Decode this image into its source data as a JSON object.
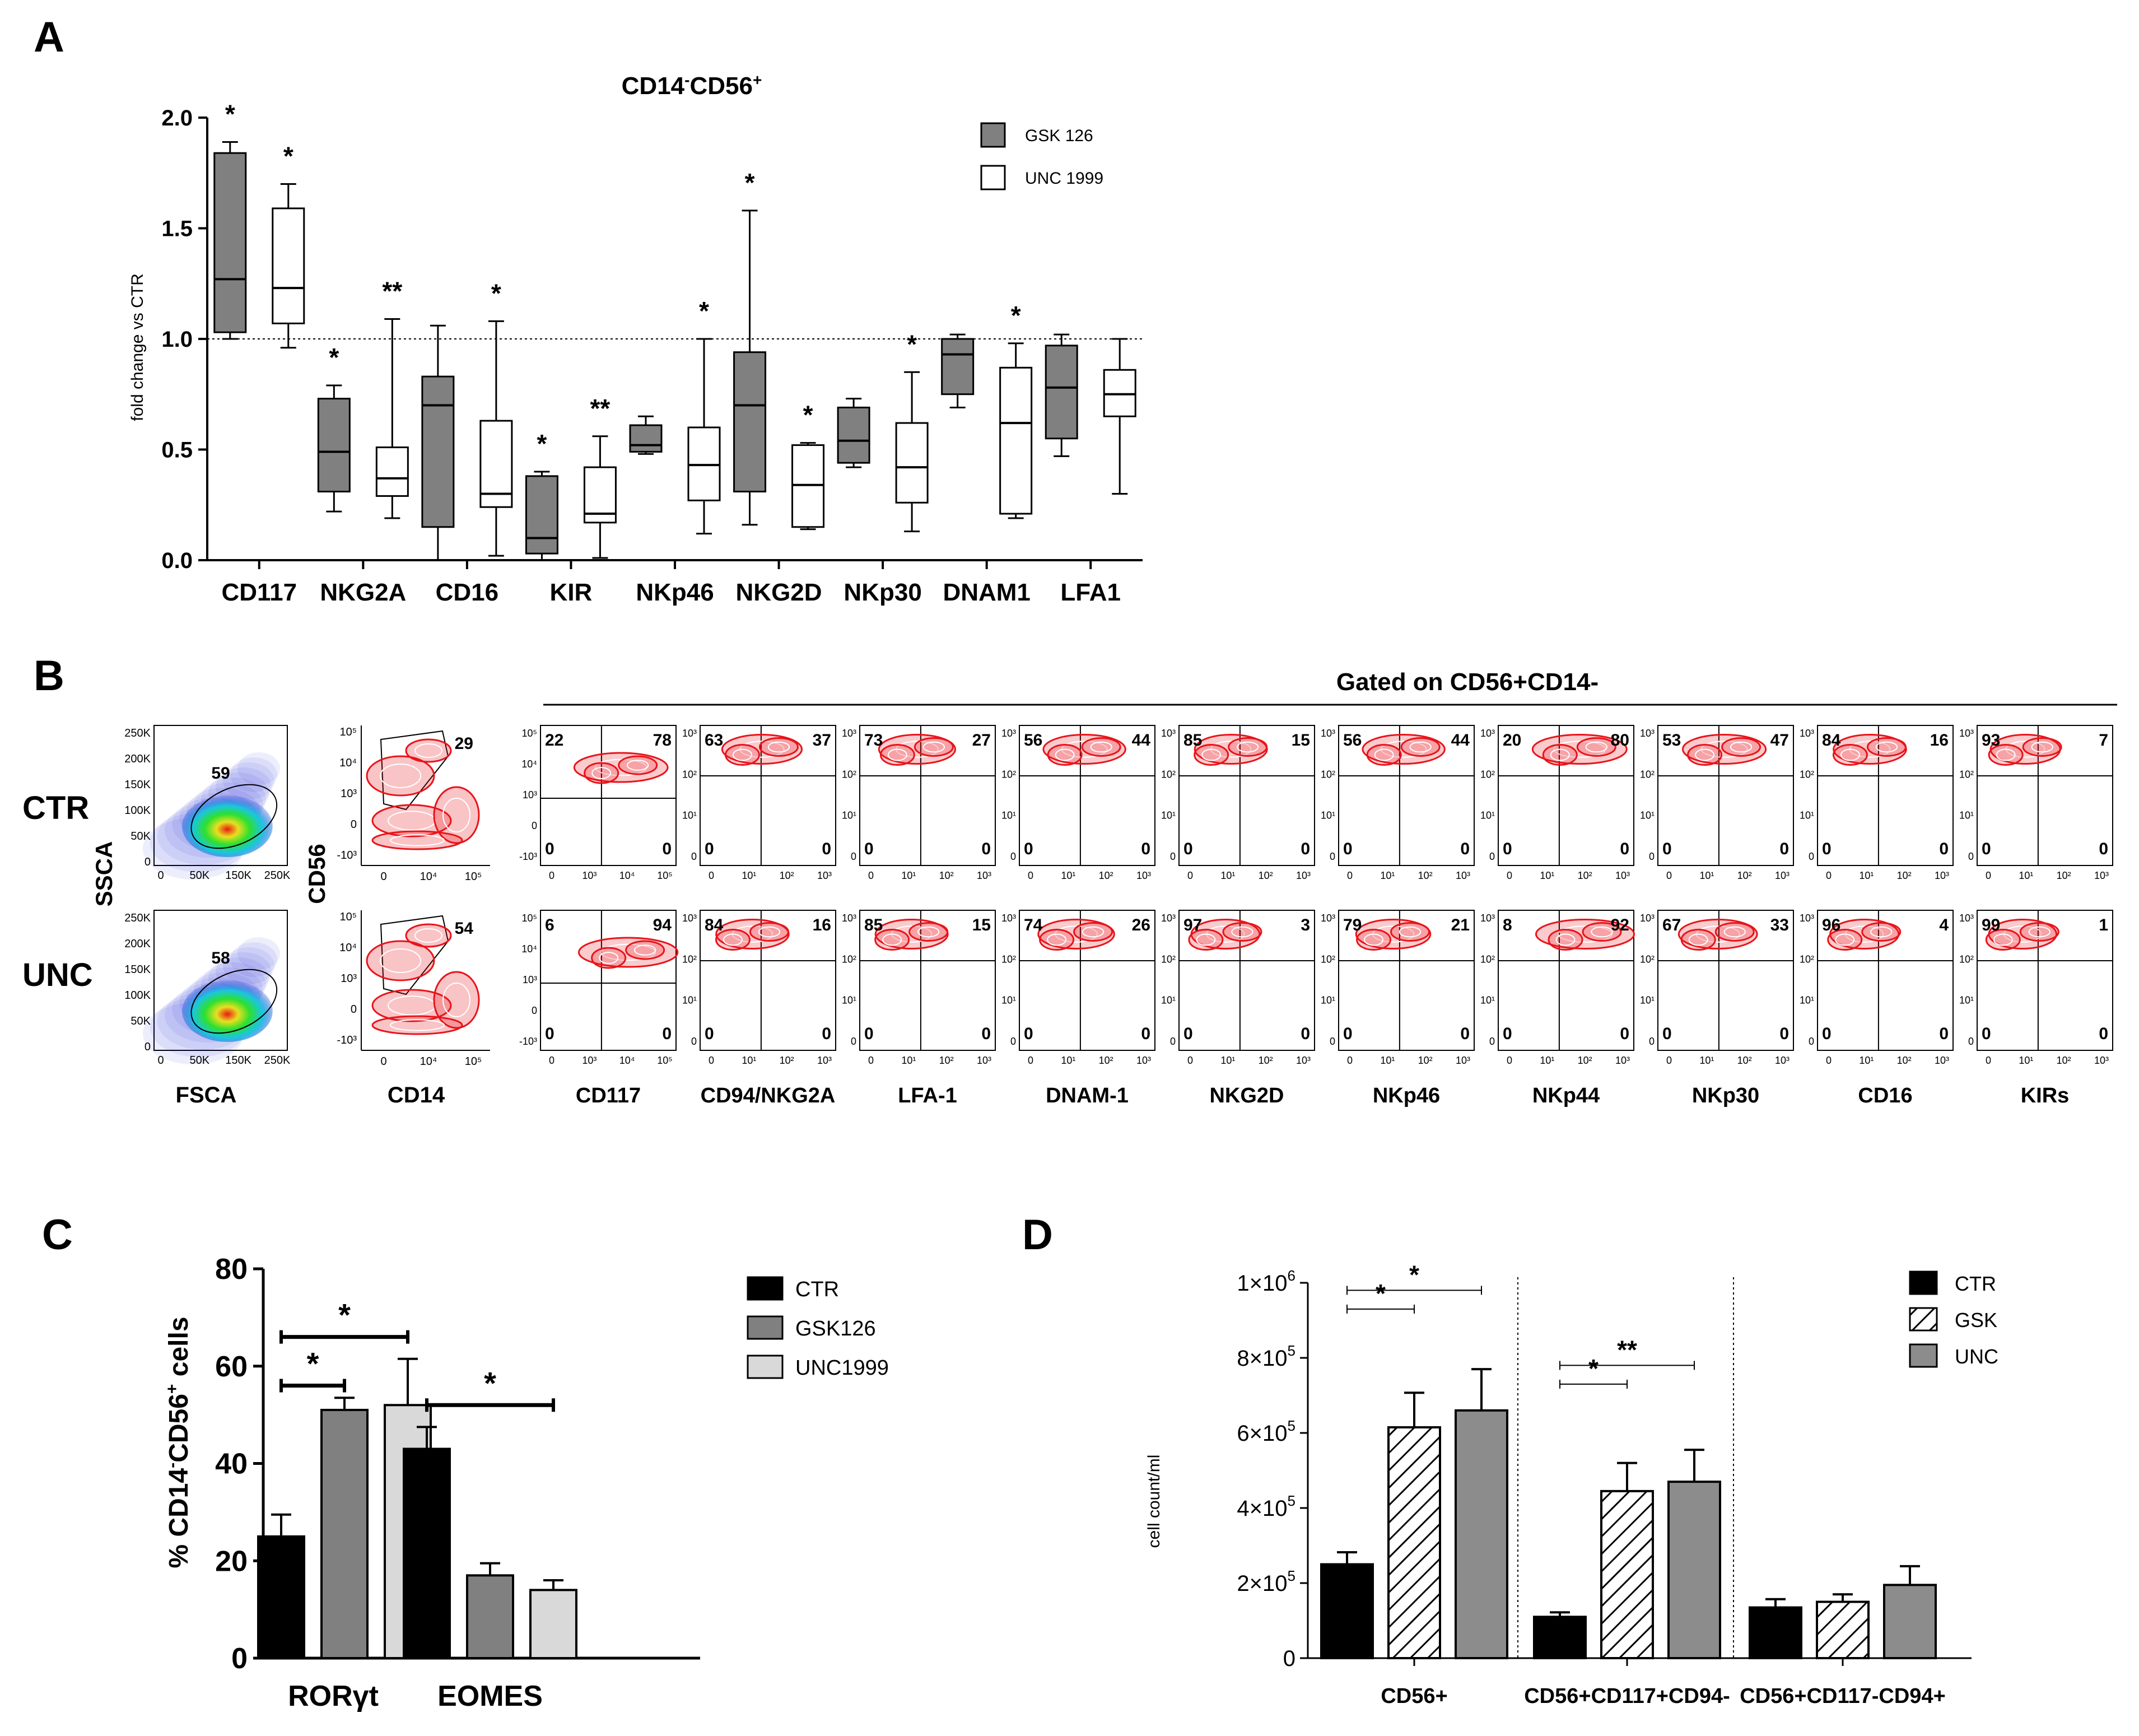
{
  "panel_labels": {
    "a": "A",
    "b": "B",
    "c": "C",
    "d": "D"
  },
  "colors": {
    "gsk": "#808080",
    "unc": "#ffffff",
    "ctr": "#000000",
    "unc_c": "#d9d9d9",
    "unc_d": "#8c8c8c",
    "flow_red": "#e8141a",
    "flow_density": [
      "#1a2bd8",
      "#19c6e0",
      "#2ee02e",
      "#e8e020",
      "#e81a14"
    ]
  },
  "chart_data": [
    {
      "type": "box",
      "title": "CD14-CD56+",
      "title_parts": {
        "a": "CD14",
        "b": "-",
        "c": "CD56",
        "d": "+"
      },
      "ylabel": "fold change vs CTR",
      "ylim": [
        0,
        2.0
      ],
      "yticks": [
        "0.0",
        "0.5",
        "1.0",
        "1.5",
        "2.0"
      ],
      "reference_line": 1.0,
      "categories": [
        "CD117",
        "NKG2A",
        "CD16",
        "KIR",
        "NKp46",
        "NKG2D",
        "NKp30",
        "DNAM1",
        "LFA1"
      ],
      "legend": [
        "GSK 126",
        "UNC 1999"
      ],
      "series": [
        {
          "name": "GSK 126",
          "boxes": [
            {
              "min": 1.0,
              "q1": 1.03,
              "med": 1.27,
              "q3": 1.84,
              "max": 1.89
            },
            {
              "min": 0.22,
              "q1": 0.31,
              "med": 0.49,
              "q3": 0.73,
              "max": 0.79
            },
            {
              "min": 0.0,
              "q1": 0.15,
              "med": 0.7,
              "q3": 0.83,
              "max": 1.06
            },
            {
              "min": 0.0,
              "q1": 0.03,
              "med": 0.1,
              "q3": 0.38,
              "max": 0.4
            },
            {
              "min": 0.48,
              "q1": 0.49,
              "med": 0.52,
              "q3": 0.61,
              "max": 0.65
            },
            {
              "min": 0.16,
              "q1": 0.31,
              "med": 0.7,
              "q3": 0.94,
              "max": 1.58
            },
            {
              "min": 0.42,
              "q1": 0.44,
              "med": 0.54,
              "q3": 0.69,
              "max": 0.73
            },
            {
              "min": 0.69,
              "q1": 0.75,
              "med": 0.93,
              "q3": 1.0,
              "max": 1.02
            },
            {
              "min": 0.47,
              "q1": 0.55,
              "med": 0.78,
              "q3": 0.97,
              "max": 1.02
            }
          ]
        },
        {
          "name": "UNC 1999",
          "boxes": [
            {
              "min": 0.96,
              "q1": 1.07,
              "med": 1.23,
              "q3": 1.59,
              "max": 1.7
            },
            {
              "min": 0.19,
              "q1": 0.29,
              "med": 0.37,
              "q3": 0.51,
              "max": 1.09
            },
            {
              "min": 0.02,
              "q1": 0.24,
              "med": 0.3,
              "q3": 0.63,
              "max": 1.08
            },
            {
              "min": 0.01,
              "q1": 0.17,
              "med": 0.21,
              "q3": 0.42,
              "max": 0.56
            },
            {
              "min": 0.12,
              "q1": 0.27,
              "med": 0.43,
              "q3": 0.6,
              "max": 1.0
            },
            {
              "min": 0.14,
              "q1": 0.15,
              "med": 0.34,
              "q3": 0.52,
              "max": 0.53
            },
            {
              "min": 0.13,
              "q1": 0.26,
              "med": 0.42,
              "q3": 0.62,
              "max": 0.85
            },
            {
              "min": 0.19,
              "q1": 0.21,
              "med": 0.62,
              "q3": 0.87,
              "max": 0.98
            },
            {
              "min": 0.3,
              "q1": 0.65,
              "med": 0.75,
              "q3": 0.86,
              "max": 1.0
            }
          ]
        }
      ],
      "annotations": [
        {
          "category": "CD117",
          "series": 0,
          "text": "*"
        },
        {
          "category": "CD117",
          "series": 1,
          "text": "*"
        },
        {
          "category": "NKG2A",
          "series": 0,
          "text": "*"
        },
        {
          "category": "NKG2A",
          "series": 1,
          "text": "**"
        },
        {
          "category": "CD16",
          "series": 1,
          "text": "*"
        },
        {
          "category": "KIR",
          "series": 0,
          "text": "*"
        },
        {
          "category": "KIR",
          "series": 1,
          "text": "**"
        },
        {
          "category": "NKp46",
          "series": 1,
          "text": "*"
        },
        {
          "category": "NKG2D",
          "series": 0,
          "text": "*"
        },
        {
          "category": "NKG2D",
          "series": 1,
          "text": "*"
        },
        {
          "category": "NKp30",
          "series": 1,
          "text": "*"
        },
        {
          "category": "DNAM1",
          "series": 1,
          "text": "*"
        }
      ]
    },
    {
      "type": "flow_cytometry",
      "header": "Gated on CD56+CD14-",
      "rows": [
        "CTR",
        "UNC"
      ],
      "scatter": {
        "xlabel": "FSCA",
        "ylabel": "SSCA",
        "yticks": [
          "250K",
          "200K",
          "150K",
          "100K",
          "50K",
          "0"
        ],
        "xticks": [
          "0",
          "50K",
          "150K",
          "250K"
        ],
        "values": [
          "59",
          "58"
        ]
      },
      "gate": {
        "xlabel": "CD14",
        "ylabel": "CD56",
        "values": [
          "29",
          "54"
        ]
      },
      "gate_axis": {
        "y": [
          "10⁵",
          "10⁴",
          "10³",
          "0",
          "-10³"
        ],
        "x": [
          "0",
          "10⁴",
          "10⁵"
        ]
      },
      "marker_axis": {
        "y": [
          "10³",
          "10²",
          "10¹",
          "0"
        ],
        "x": [
          "0",
          "10¹",
          "10²",
          "10³"
        ]
      },
      "cd117_axis": {
        "y": [
          "10⁵",
          "10⁴",
          "10³",
          "0",
          "-10³"
        ],
        "x": [
          "0",
          "10³",
          "10⁴",
          "10⁵"
        ]
      },
      "markers": [
        {
          "name": "CD117",
          "ctr": [
            "22",
            "78",
            "0",
            "0"
          ],
          "unc": [
            "6",
            "94",
            "0",
            "0"
          ]
        },
        {
          "name": "CD94/NKG2A",
          "ctr": [
            "63",
            "37",
            "0",
            "0"
          ],
          "unc": [
            "84",
            "16",
            "0",
            "0"
          ]
        },
        {
          "name": "LFA-1",
          "ctr": [
            "73",
            "27",
            "0",
            "0"
          ],
          "unc": [
            "85",
            "15",
            "0",
            "0"
          ]
        },
        {
          "name": "DNAM-1",
          "ctr": [
            "56",
            "44",
            "0",
            "0"
          ],
          "unc": [
            "74",
            "26",
            "0",
            "0"
          ]
        },
        {
          "name": "NKG2D",
          "ctr": [
            "85",
            "15",
            "0",
            "0"
          ],
          "unc": [
            "97",
            "3",
            "0",
            "0"
          ]
        },
        {
          "name": "NKp46",
          "ctr": [
            "56",
            "44",
            "0",
            "0"
          ],
          "unc": [
            "79",
            "21",
            "0",
            "0"
          ]
        },
        {
          "name": "NKp44",
          "ctr": [
            "20",
            "80",
            "0",
            "0"
          ],
          "unc": [
            "8",
            "92",
            "0",
            "0"
          ]
        },
        {
          "name": "NKp30",
          "ctr": [
            "53",
            "47",
            "0",
            "0"
          ],
          "unc": [
            "67",
            "33",
            "0",
            "0"
          ]
        },
        {
          "name": "CD16",
          "ctr": [
            "84",
            "16",
            "0",
            "0"
          ],
          "unc": [
            "96",
            "4",
            "0",
            "0"
          ]
        },
        {
          "name": "KIRs",
          "ctr": [
            "93",
            "7",
            "0",
            "0"
          ],
          "unc": [
            "99",
            "1",
            "0",
            "0"
          ]
        }
      ]
    },
    {
      "type": "bar",
      "ylabel_parts": {
        "a": "% CD14",
        "b": "-",
        "c": "CD56",
        "d": "+",
        "e": " cells"
      },
      "ylim": [
        0,
        80
      ],
      "yticks": [
        "0",
        "20",
        "40",
        "60",
        "80"
      ],
      "categories": [
        "RORγt",
        "EOMES"
      ],
      "series": [
        {
          "name": "CTR",
          "values": [
            25,
            43
          ],
          "errors": [
            4.5,
            4.5
          ]
        },
        {
          "name": "GSK126",
          "values": [
            51,
            17
          ],
          "errors": [
            2.5,
            2.5
          ]
        },
        {
          "name": "UNC1999",
          "values": [
            52,
            14
          ],
          "errors": [
            9.5,
            2
          ]
        }
      ],
      "brackets": [
        {
          "from": [
            0,
            0
          ],
          "to": [
            0,
            2
          ],
          "y": 66,
          "text": "*"
        },
        {
          "from": [
            0,
            0
          ],
          "to": [
            0,
            1
          ],
          "y": 56,
          "text": "*"
        },
        {
          "from": [
            1,
            0
          ],
          "to": [
            1,
            2
          ],
          "y": 52,
          "text": "*"
        }
      ]
    },
    {
      "type": "bar",
      "ylabel": "cell count/ml",
      "ylim": [
        0,
        1000000
      ],
      "yticks": [
        {
          "m": "0",
          "e": ""
        },
        {
          "m": "2×10",
          "e": "5"
        },
        {
          "m": "4×10",
          "e": "5"
        },
        {
          "m": "6×10",
          "e": "5"
        },
        {
          "m": "8×10",
          "e": "5"
        },
        {
          "m": "1×10",
          "e": "6"
        }
      ],
      "categories": [
        "CD56+",
        "CD56+CD117+CD94-",
        "CD56+CD117-CD94+"
      ],
      "series": [
        {
          "name": "CTR",
          "values": [
            250000,
            110000,
            135000
          ],
          "errors": [
            32000,
            12000,
            22000
          ]
        },
        {
          "name": "GSK",
          "values": [
            615000,
            445000,
            150000
          ],
          "errors": [
            92000,
            75000,
            20000
          ]
        },
        {
          "name": "UNC",
          "values": [
            660000,
            470000,
            195000
          ],
          "errors": [
            110000,
            85000,
            50000
          ]
        }
      ],
      "brackets": [
        {
          "from": [
            0,
            0
          ],
          "to": [
            0,
            2
          ],
          "y": 980000,
          "text": "*"
        },
        {
          "from": [
            0,
            0
          ],
          "to": [
            0,
            1
          ],
          "y": 930000,
          "text": "*"
        },
        {
          "from": [
            1,
            0
          ],
          "to": [
            1,
            2
          ],
          "y": 780000,
          "text": "**"
        },
        {
          "from": [
            1,
            0
          ],
          "to": [
            1,
            1
          ],
          "y": 730000,
          "text": "*"
        }
      ]
    }
  ]
}
